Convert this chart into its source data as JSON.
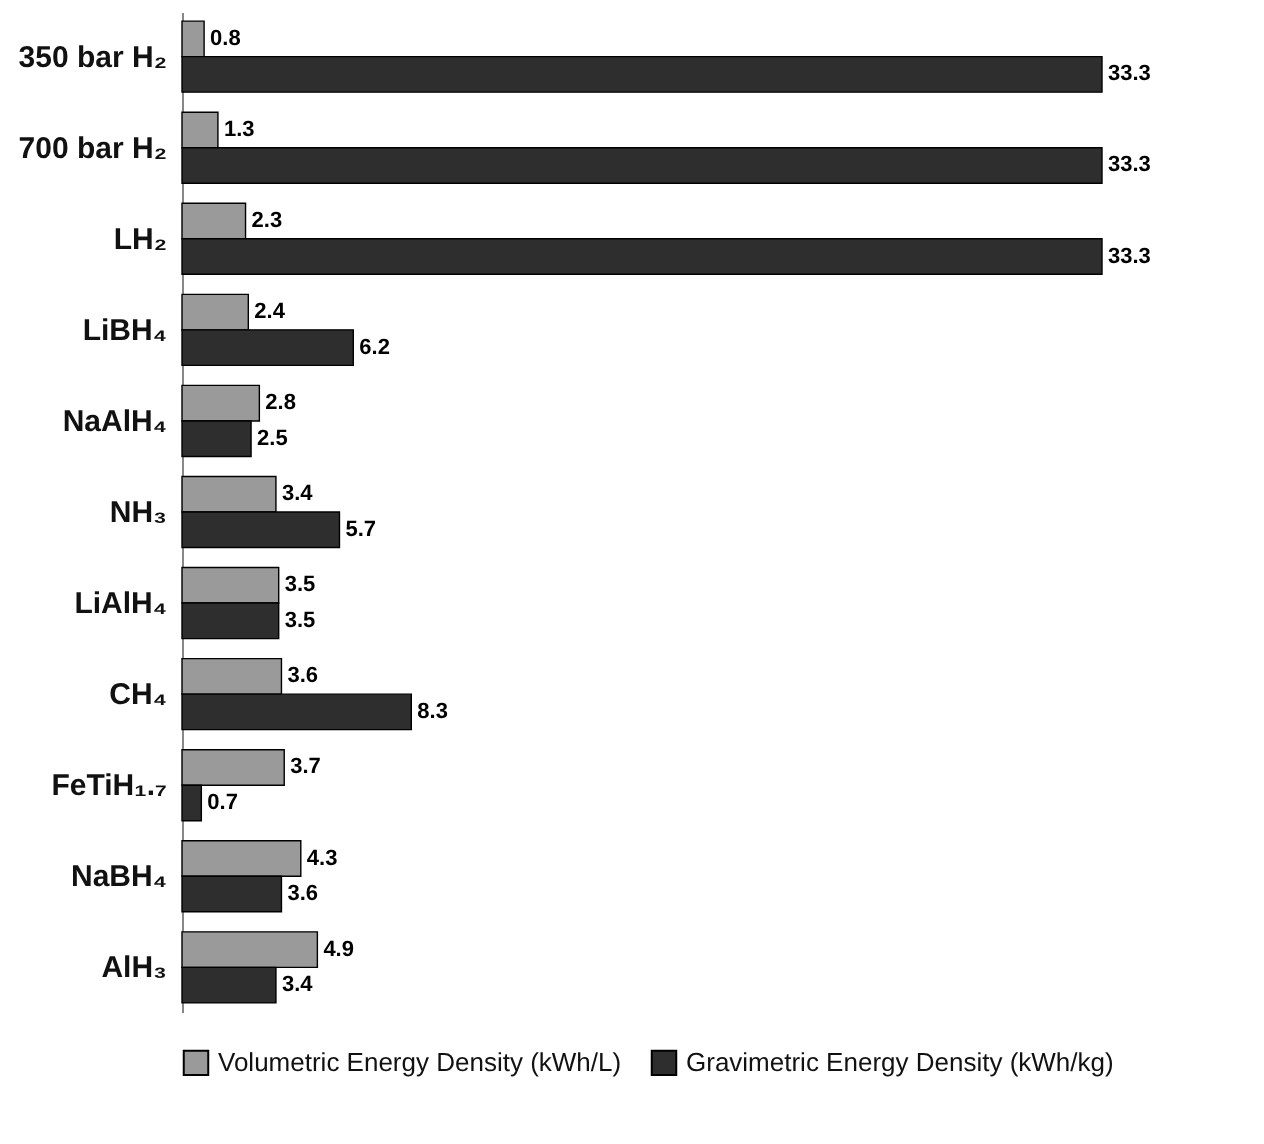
{
  "chart_data": {
    "type": "bar",
    "orientation": "horizontal",
    "categories": [
      "350 bar H₂",
      "700 bar H₂",
      "LH₂",
      "LiBH₄",
      "NaAlH₄",
      "NH₃",
      "LiAlH₄",
      "CH₄",
      "FeTiH₁.₇",
      "NaBH₄",
      "AlH₃"
    ],
    "series": [
      {
        "name": "Volumetric Energy Density (kWh/L)",
        "color": "#9a9a9a",
        "values": [
          0.8,
          1.3,
          2.3,
          2.4,
          2.8,
          3.4,
          3.5,
          3.6,
          3.7,
          4.3,
          4.9
        ]
      },
      {
        "name": "Gravimetric Energy Density (kWh/kg)",
        "color": "#2e2e2e",
        "values": [
          33.3,
          33.3,
          33.3,
          6.2,
          2.5,
          5.7,
          3.5,
          8.3,
          0.7,
          3.6,
          3.4
        ]
      }
    ],
    "data_labels": true,
    "legend": "bottom"
  }
}
